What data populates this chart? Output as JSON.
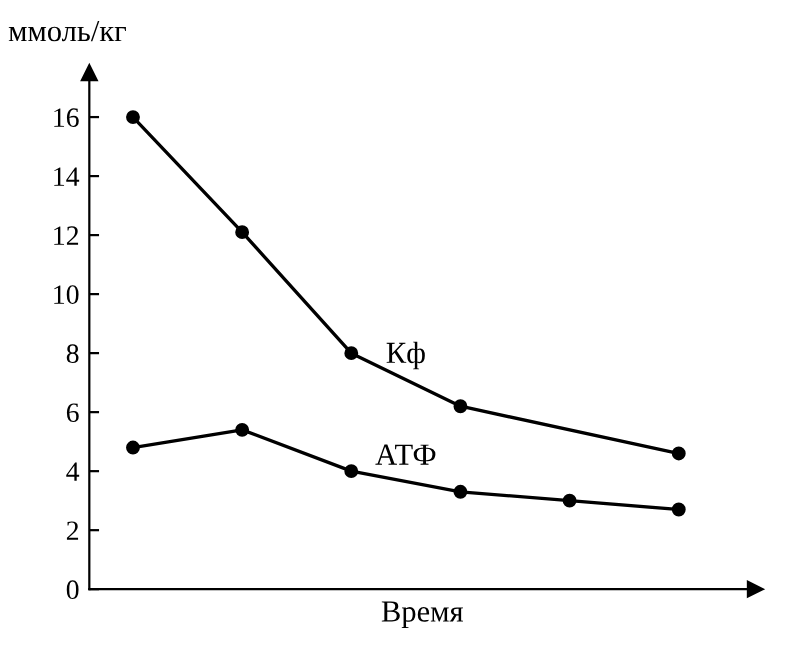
{
  "chart_data": {
    "type": "line",
    "ylabel": "ммоль/кг",
    "xlabel": "Время",
    "categories": [
      null,
      null,
      null,
      null,
      null,
      null
    ],
    "series": [
      {
        "name": "Кф",
        "color": "#000000",
        "values": [
          16,
          12.1,
          8,
          6.2,
          null,
          4.6
        ]
      },
      {
        "name": "АТФ",
        "color": "#000000",
        "values": [
          4.8,
          5.4,
          4,
          3.3,
          3,
          2.7
        ]
      }
    ],
    "ylim": [
      0,
      17.5
    ],
    "yticks": [
      0,
      2,
      4,
      6,
      8,
      10,
      12,
      14,
      16
    ],
    "tick_labels": "y",
    "marker": "circle",
    "line_style": "solid",
    "grid": false,
    "legend": false
  }
}
